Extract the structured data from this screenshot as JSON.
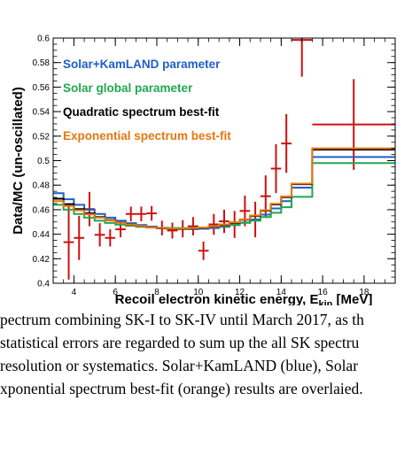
{
  "chart_data": {
    "type": "line",
    "xlabel": "Recoil electron kinetic energy, E",
    "xlabel_sub": "kin",
    "xlabel_unit": " [MeV]",
    "ylabel": "Data/MC (un-oscillated)",
    "xlim": [
      3.0,
      19.5
    ],
    "ylim": [
      0.4,
      0.6
    ],
    "xticks": [
      4,
      6,
      8,
      10,
      12,
      14,
      16,
      18
    ],
    "yticks": [
      0.4,
      0.42,
      0.44,
      0.46,
      0.48,
      0.5,
      0.52,
      0.54,
      0.56,
      0.58,
      0.6
    ],
    "ytick_labels": [
      "0.4",
      "0.42",
      "0.44",
      "0.46",
      "0.48",
      "0.5",
      "0.52",
      "0.54",
      "0.56",
      "0.58",
      "0.6"
    ],
    "grid": false,
    "legend_position": "top-left",
    "bin_edges": [
      3.0,
      3.5,
      4.0,
      4.5,
      5.0,
      5.5,
      6.0,
      6.5,
      7.0,
      7.5,
      8.0,
      8.5,
      9.0,
      9.5,
      10.0,
      10.5,
      11.0,
      11.5,
      12.0,
      12.5,
      13.0,
      13.5,
      14.0,
      14.5,
      15.5,
      19.5
    ],
    "series": [
      {
        "name": "Solar+KamLAND parameter",
        "color": "#1f5fc8",
        "values": [
          0.4735,
          0.4685,
          0.464,
          0.46,
          0.4565,
          0.4535,
          0.451,
          0.449,
          0.4475,
          0.4462,
          0.4452,
          0.4445,
          0.4442,
          0.4442,
          0.4445,
          0.445,
          0.446,
          0.4475,
          0.4495,
          0.452,
          0.456,
          0.461,
          0.467,
          0.478,
          0.503
        ]
      },
      {
        "name": "Solar global parameter",
        "color": "#1fa851",
        "values": [
          0.464,
          0.46,
          0.4565,
          0.4535,
          0.451,
          0.4492,
          0.4478,
          0.4468,
          0.446,
          0.4455,
          0.4452,
          0.445,
          0.445,
          0.4452,
          0.4455,
          0.446,
          0.4468,
          0.4478,
          0.4492,
          0.451,
          0.454,
          0.4575,
          0.462,
          0.4705,
          0.498
        ]
      },
      {
        "name": "Quadratic spectrum best-fit",
        "color": "#000000",
        "values": [
          0.469,
          0.4645,
          0.4605,
          0.457,
          0.454,
          0.4515,
          0.4495,
          0.4478,
          0.4465,
          0.4455,
          0.4448,
          0.4444,
          0.4443,
          0.4446,
          0.4452,
          0.4462,
          0.4476,
          0.4494,
          0.4518,
          0.4548,
          0.4592,
          0.4643,
          0.4702,
          0.4808,
          0.509
        ]
      },
      {
        "name": "Exponential spectrum best-fit",
        "color": "#e8760e",
        "values": [
          0.467,
          0.463,
          0.4595,
          0.4562,
          0.4535,
          0.4512,
          0.4494,
          0.4478,
          0.4466,
          0.4456,
          0.445,
          0.4446,
          0.4446,
          0.4449,
          0.4455,
          0.4465,
          0.4479,
          0.4497,
          0.4521,
          0.4552,
          0.4596,
          0.4648,
          0.4708,
          0.4812,
          0.51
        ]
      }
    ],
    "data_points": {
      "color": "#cc1111",
      "points": [
        {
          "x": 3.75,
          "y": 0.4335,
          "xerr": 0.25,
          "yerr": 0.0305
        },
        {
          "x": 4.25,
          "y": 0.437,
          "xerr": 0.25,
          "yerr": 0.018
        },
        {
          "x": 4.75,
          "y": 0.4605,
          "xerr": 0.25,
          "yerr": 0.014
        },
        {
          "x": 5.25,
          "y": 0.4395,
          "xerr": 0.25,
          "yerr": 0.0095
        },
        {
          "x": 5.75,
          "y": 0.437,
          "xerr": 0.25,
          "yerr": 0.007
        },
        {
          "x": 6.25,
          "y": 0.444,
          "xerr": 0.25,
          "yerr": 0.0065
        },
        {
          "x": 6.75,
          "y": 0.4565,
          "xerr": 0.25,
          "yerr": 0.006
        },
        {
          "x": 7.25,
          "y": 0.4565,
          "xerr": 0.25,
          "yerr": 0.006
        },
        {
          "x": 7.75,
          "y": 0.457,
          "xerr": 0.25,
          "yerr": 0.006
        },
        {
          "x": 8.25,
          "y": 0.445,
          "xerr": 0.25,
          "yerr": 0.006
        },
        {
          "x": 8.75,
          "y": 0.443,
          "xerr": 0.25,
          "yerr": 0.0065
        },
        {
          "x": 9.25,
          "y": 0.4445,
          "xerr": 0.25,
          "yerr": 0.007
        },
        {
          "x": 9.75,
          "y": 0.4465,
          "xerr": 0.25,
          "yerr": 0.0075
        },
        {
          "x": 10.25,
          "y": 0.4265,
          "xerr": 0.25,
          "yerr": 0.0075
        },
        {
          "x": 10.75,
          "y": 0.448,
          "xerr": 0.25,
          "yerr": 0.0085
        },
        {
          "x": 11.25,
          "y": 0.4505,
          "xerr": 0.25,
          "yerr": 0.0095
        },
        {
          "x": 11.75,
          "y": 0.448,
          "xerr": 0.25,
          "yerr": 0.011
        },
        {
          "x": 12.25,
          "y": 0.459,
          "xerr": 0.25,
          "yerr": 0.0125
        },
        {
          "x": 12.75,
          "y": 0.452,
          "xerr": 0.25,
          "yerr": 0.0145
        },
        {
          "x": 13.25,
          "y": 0.471,
          "xerr": 0.25,
          "yerr": 0.017
        },
        {
          "x": 13.75,
          "y": 0.4935,
          "xerr": 0.25,
          "yerr": 0.02
        },
        {
          "x": 14.25,
          "y": 0.514,
          "xerr": 0.25,
          "yerr": 0.024
        },
        {
          "x": 15.0,
          "y": 0.5985,
          "xerr": 0.5,
          "yerr": 0.03
        },
        {
          "x": 17.5,
          "y": 0.5295,
          "xerr": 2.0,
          "yerr": 0.037
        }
      ]
    }
  },
  "caption": {
    "line1": "pectrum combining SK-I to SK-IV until March 2017, as th",
    "line2": " statistical errors are regarded to sum up the all SK spectru",
    "line3": " resolution or systematics. Solar+KamLAND (blue), Solar",
    "line4": "xponential spectrum best-fit (orange) results are overlaied."
  }
}
